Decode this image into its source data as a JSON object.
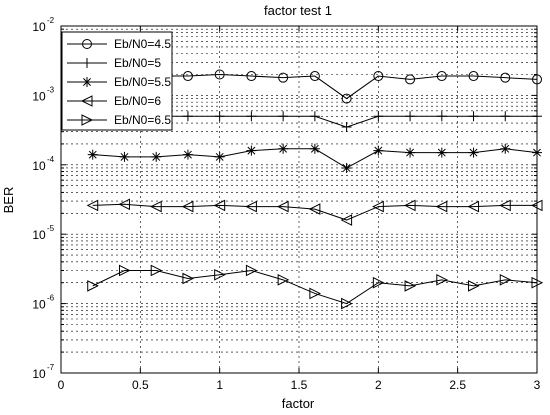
{
  "chart_data": {
    "type": "line",
    "title": "factor test 1",
    "xlabel": "factor",
    "ylabel": "BER",
    "y_scale": "log",
    "xlim": [
      0,
      3
    ],
    "ylim": [
      1e-07,
      0.01
    ],
    "x_ticks": [
      "0",
      "0.5",
      "1",
      "1.5",
      "2",
      "2.5",
      "3"
    ],
    "y_ticks": [
      {
        "base": "10",
        "exp": "-7"
      },
      {
        "base": "10",
        "exp": "-6"
      },
      {
        "base": "10",
        "exp": "-5"
      },
      {
        "base": "10",
        "exp": "-4"
      },
      {
        "base": "10",
        "exp": "-3"
      },
      {
        "base": "10",
        "exp": "-2"
      }
    ],
    "grid": "dashed, major and minor on y",
    "legend_position": "top-left",
    "x": [
      0.2,
      0.4,
      0.6,
      0.8,
      1.0,
      1.2,
      1.4,
      1.6,
      1.8,
      2.0,
      2.2,
      2.4,
      2.6,
      2.8,
      3.0
    ],
    "series": [
      {
        "name": "Eb/N0=4.5",
        "marker": "circle",
        "values": [
          0.002,
          0.002,
          0.0019,
          0.0019,
          0.002,
          0.0019,
          0.0018,
          0.0019,
          0.0009,
          0.0019,
          0.0017,
          0.0019,
          0.0019,
          0.0018,
          0.0017
        ]
      },
      {
        "name": "Eb/N0=5",
        "marker": "plus",
        "values": [
          0.0005,
          0.0005,
          0.0005,
          0.0005,
          0.0005,
          0.0005,
          0.0005,
          0.0005,
          0.00035,
          0.0005,
          0.0005,
          0.0005,
          0.0005,
          0.0005,
          0.0005
        ]
      },
      {
        "name": "Eb/N0=5.5",
        "marker": "star",
        "values": [
          0.00014,
          0.00013,
          0.00013,
          0.00014,
          0.00013,
          0.00016,
          0.00017,
          0.00017,
          9e-05,
          0.00016,
          0.00015,
          0.00015,
          0.00015,
          0.00017,
          0.00015
        ]
      },
      {
        "name": "Eb/N0=6",
        "marker": "triangle-left",
        "values": [
          2.6e-05,
          2.7e-05,
          2.5e-05,
          2.5e-05,
          2.6e-05,
          2.5e-05,
          2.5e-05,
          2.3e-05,
          1.6e-05,
          2.5e-05,
          2.6e-05,
          2.5e-05,
          2.5e-05,
          2.6e-05,
          2.6e-05
        ]
      },
      {
        "name": "Eb/N0=6.5",
        "marker": "triangle-right",
        "values": [
          1.8e-06,
          3e-06,
          3e-06,
          2.3e-06,
          2.6e-06,
          3e-06,
          2.2e-06,
          1.4e-06,
          1e-06,
          2e-06,
          1.8e-06,
          2.2e-06,
          1.8e-06,
          2.2e-06,
          2e-06
        ]
      }
    ]
  }
}
